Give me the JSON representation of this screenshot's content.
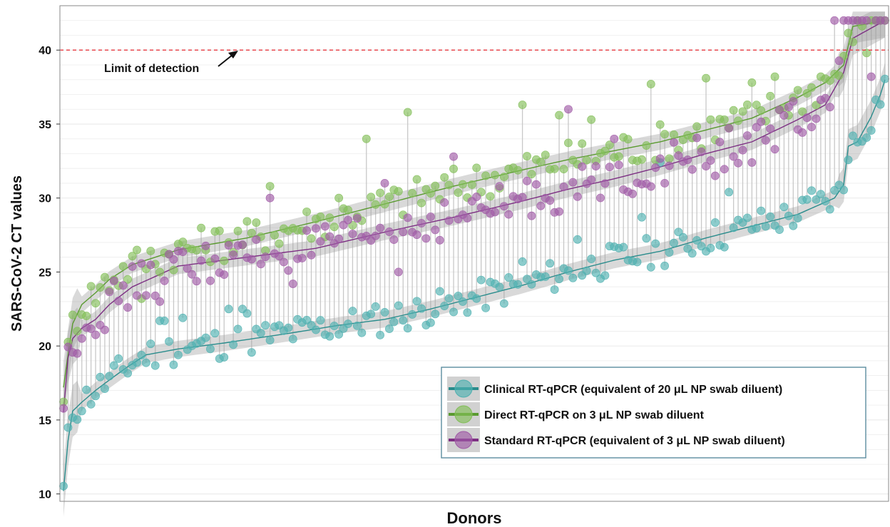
{
  "chart_data": {
    "type": "scatter",
    "ylabel": "SARS-CoV-2 CT values",
    "xlabel": "Donors",
    "ylim": [
      9.5,
      43
    ],
    "yticks": [
      10,
      15,
      20,
      25,
      30,
      35,
      40
    ],
    "grid": "horizontal",
    "legend_position": "bottom-right",
    "annotation": {
      "text": "Limit of detection",
      "y": 40,
      "line_color": "#e8474e"
    },
    "n_donors": 180,
    "series": [
      {
        "name": "Clinical RT-qPCR (equivalent of 20 μL NP swab diluent)",
        "color": "#4fb0b0",
        "line_color": "#2a8c8c",
        "anchors": [
          [
            0,
            10.2
          ],
          [
            1,
            13.6
          ],
          [
            2,
            15.6
          ],
          [
            4,
            16.2
          ],
          [
            7,
            17.0
          ],
          [
            10,
            17.7
          ],
          [
            14,
            18.6
          ],
          [
            18,
            19.4
          ],
          [
            25,
            19.8
          ],
          [
            35,
            20.2
          ],
          [
            50,
            20.9
          ],
          [
            60,
            21.4
          ],
          [
            70,
            21.8
          ],
          [
            80,
            22.5
          ],
          [
            90,
            23.3
          ],
          [
            100,
            24.1
          ],
          [
            110,
            25.0
          ],
          [
            120,
            25.8
          ],
          [
            130,
            26.4
          ],
          [
            140,
            27.3
          ],
          [
            150,
            28.1
          ],
          [
            160,
            28.9
          ],
          [
            168,
            30.0
          ],
          [
            170,
            30.9
          ],
          [
            171,
            33.5
          ],
          [
            173,
            33.8
          ],
          [
            176,
            35.5
          ],
          [
            178,
            37.0
          ],
          [
            179,
            38.0
          ]
        ],
        "noise": 1.1,
        "outliers": [
          [
            21,
            21.7
          ],
          [
            22,
            21.7
          ],
          [
            26,
            21.9
          ],
          [
            36,
            22.5
          ],
          [
            39,
            22.5
          ],
          [
            40,
            22.2
          ],
          [
            85,
            22.3
          ],
          [
            100,
            25.7
          ],
          [
            112,
            27.2
          ],
          [
            126,
            28.7
          ],
          [
            130,
            32.4
          ],
          [
            145,
            30.4
          ],
          [
            163,
            30.5
          ]
        ]
      },
      {
        "name": "Direct RT-qPCR on 3 μL NP swab diluent",
        "color": "#82be58",
        "line_color": "#5a9a30",
        "anchors": [
          [
            0,
            17.2
          ],
          [
            1,
            19.4
          ],
          [
            2,
            21.5
          ],
          [
            4,
            22.8
          ],
          [
            7,
            23.6
          ],
          [
            10,
            24.5
          ],
          [
            15,
            25.5
          ],
          [
            25,
            26.5
          ],
          [
            40,
            27.3
          ],
          [
            55,
            28.4
          ],
          [
            70,
            29.6
          ],
          [
            85,
            30.8
          ],
          [
            100,
            31.9
          ],
          [
            110,
            32.6
          ],
          [
            120,
            33.2
          ],
          [
            130,
            33.8
          ],
          [
            140,
            34.6
          ],
          [
            150,
            35.4
          ],
          [
            160,
            36.8
          ],
          [
            166,
            37.8
          ],
          [
            170,
            39.0
          ],
          [
            172,
            41.6
          ],
          [
            179,
            42
          ]
        ],
        "noise": 1.3,
        "outliers": [
          [
            17,
            23.2
          ],
          [
            45,
            30.8
          ],
          [
            60,
            30.0
          ],
          [
            66,
            34.0
          ],
          [
            75,
            35.8
          ],
          [
            100,
            36.3
          ],
          [
            108,
            35.6
          ],
          [
            115,
            35.3
          ],
          [
            128,
            37.7
          ],
          [
            140,
            38.1
          ],
          [
            150,
            37.8
          ],
          [
            155,
            38.2
          ],
          [
            165,
            38.2
          ],
          [
            175,
            39.8
          ]
        ]
      },
      {
        "name": "Standard RT-qPCR (equivalent of 3 μL NP swab diluent)",
        "color": "#a05aa6",
        "line_color": "#7d2f83",
        "anchors": [
          [
            0,
            15.5
          ],
          [
            1,
            19.2
          ],
          [
            2,
            20.5
          ],
          [
            4,
            21.2
          ],
          [
            7,
            21.8
          ],
          [
            10,
            22.8
          ],
          [
            15,
            24.0
          ],
          [
            25,
            25.4
          ],
          [
            40,
            26.0
          ],
          [
            55,
            26.6
          ],
          [
            70,
            27.7
          ],
          [
            85,
            28.7
          ],
          [
            100,
            29.8
          ],
          [
            110,
            30.6
          ],
          [
            120,
            31.3
          ],
          [
            130,
            32.1
          ],
          [
            140,
            33.0
          ],
          [
            150,
            33.8
          ],
          [
            160,
            35.3
          ],
          [
            166,
            36.3
          ],
          [
            170,
            38.5
          ],
          [
            172,
            40.8
          ],
          [
            179,
            42
          ]
        ],
        "noise": 1.4,
        "outliers": [
          [
            21,
            23.0
          ],
          [
            45,
            30.0
          ],
          [
            50,
            24.2
          ],
          [
            70,
            31.0
          ],
          [
            73,
            25.0
          ],
          [
            85,
            32.8
          ],
          [
            110,
            36.0
          ],
          [
            120,
            34.0
          ],
          [
            142,
            31.5
          ],
          [
            150,
            32.4
          ],
          [
            155,
            33.3
          ],
          [
            163,
            34.8
          ],
          [
            176,
            38.2
          ]
        ],
        "top_points": [
          150,
          168,
          170,
          171,
          172,
          173,
          174,
          175,
          176,
          177,
          178,
          179
        ]
      }
    ]
  }
}
